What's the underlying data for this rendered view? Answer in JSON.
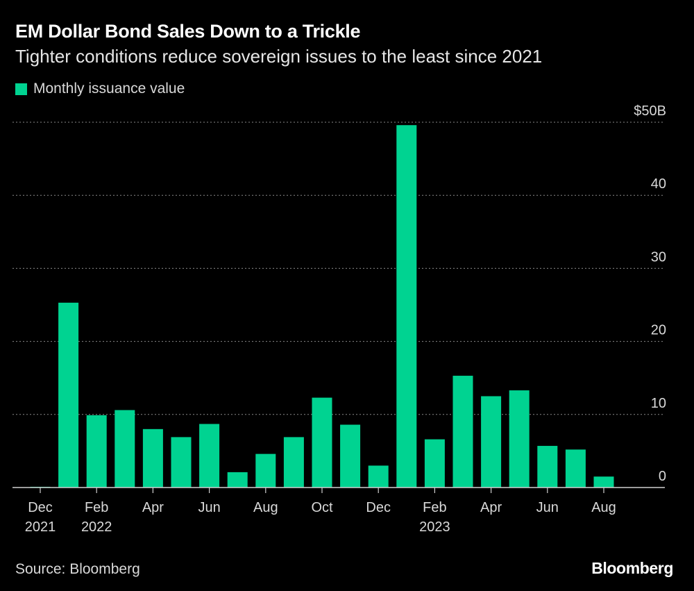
{
  "title": "EM Dollar Bond Sales Down to a Trickle",
  "subtitle": "Tighter conditions reduce sovereign issues to the least since 2021",
  "source": "Source: Bloomberg",
  "brand": "Bloomberg",
  "colors": {
    "bar": "#00d391",
    "grid": "#8a8a8a",
    "background": "#000000"
  },
  "chart_data": {
    "type": "bar",
    "legend": "Monthly issuance value",
    "categories": [
      "Dec 2021",
      "Jan 2022",
      "Feb 2022",
      "Mar 2022",
      "Apr 2022",
      "May 2022",
      "Jun 2022",
      "Jul 2022",
      "Aug 2022",
      "Sep 2022",
      "Oct 2022",
      "Nov 2022",
      "Dec 2022",
      "Jan 2023",
      "Feb 2023",
      "Mar 2023",
      "Apr 2023",
      "May 2023",
      "Jun 2023",
      "Jul 2023",
      "Aug 2023"
    ],
    "values": [
      0.1,
      25.3,
      9.9,
      10.6,
      8.0,
      6.9,
      8.7,
      2.1,
      4.6,
      6.9,
      12.3,
      8.6,
      3.0,
      49.6,
      6.6,
      15.3,
      12.5,
      13.3,
      5.7,
      5.2,
      1.5
    ],
    "ylim": [
      0,
      50
    ],
    "yticks": [
      {
        "value": 0,
        "label": "0"
      },
      {
        "value": 10,
        "label": "10"
      },
      {
        "value": 20,
        "label": "20"
      },
      {
        "value": 30,
        "label": "30"
      },
      {
        "value": 40,
        "label": "40"
      },
      {
        "value": 50,
        "label": "$50B"
      }
    ],
    "xticks": [
      {
        "index": 0,
        "month": "Dec",
        "year": "2021"
      },
      {
        "index": 2,
        "month": "Feb",
        "year": "2022"
      },
      {
        "index": 4,
        "month": "Apr",
        "year": ""
      },
      {
        "index": 6,
        "month": "Jun",
        "year": ""
      },
      {
        "index": 8,
        "month": "Aug",
        "year": ""
      },
      {
        "index": 10,
        "month": "Oct",
        "year": ""
      },
      {
        "index": 12,
        "month": "Dec",
        "year": ""
      },
      {
        "index": 14,
        "month": "Feb",
        "year": "2023"
      },
      {
        "index": 16,
        "month": "Apr",
        "year": ""
      },
      {
        "index": 18,
        "month": "Jun",
        "year": ""
      },
      {
        "index": 20,
        "month": "Aug",
        "year": ""
      }
    ],
    "grid": true,
    "yaxis_side": "right",
    "legend_position": "top-left"
  }
}
